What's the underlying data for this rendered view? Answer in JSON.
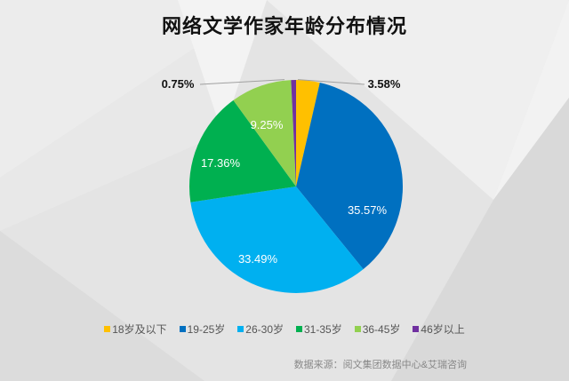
{
  "title": "网络文学作家年龄分布情况",
  "source": "数据来源：阅文集团数据中心&艾瑞咨询",
  "chart_data": {
    "type": "pie",
    "title": "网络文学作家年龄分布情况",
    "categories": [
      "18岁及以下",
      "19-25岁",
      "26-30岁",
      "31-35岁",
      "36-45岁",
      "46岁以上"
    ],
    "values": [
      3.58,
      35.57,
      33.49,
      17.36,
      9.25,
      0.75
    ],
    "labels": [
      "3.58%",
      "35.57%",
      "33.49%",
      "17.36%",
      "9.25%",
      "0.75%"
    ],
    "colors": [
      "#FFC000",
      "#0070C0",
      "#00B0F0",
      "#00B050",
      "#92D050",
      "#7030A0"
    ],
    "legend_position": "bottom",
    "start_angle": "12 o'clock, clockwise"
  },
  "legend": [
    {
      "label": "18岁及以下",
      "color": "#FFC000"
    },
    {
      "label": "19-25岁",
      "color": "#0070C0"
    },
    {
      "label": "26-30岁",
      "color": "#00B0F0"
    },
    {
      "label": "31-35岁",
      "color": "#00B050"
    },
    {
      "label": "36-45岁",
      "color": "#92D050"
    },
    {
      "label": "46岁以上",
      "color": "#7030A0"
    }
  ]
}
